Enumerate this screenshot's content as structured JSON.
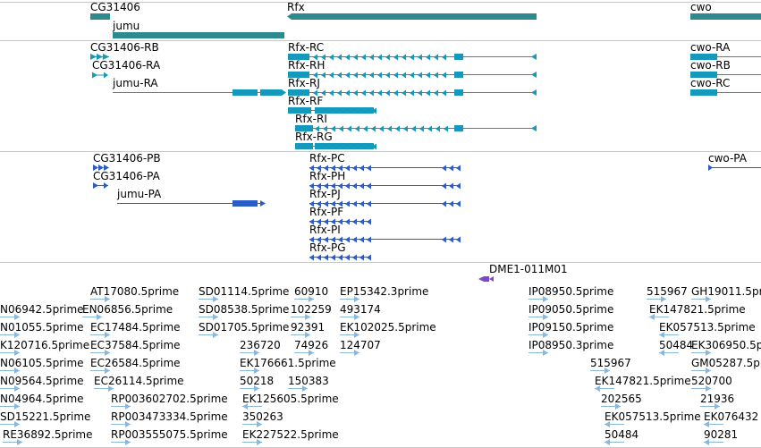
{
  "colors": {
    "gene": "#2d8b8f",
    "transcript": "#1499bc",
    "protein": "#2a5cc6",
    "clone": "#7a4cc4",
    "est": "#8ab8dc",
    "divider": "#c8c8c8"
  },
  "genes": [
    {
      "label": "CG31406"
    },
    {
      "label": "jumu"
    },
    {
      "label": "Rfx"
    },
    {
      "label": "cwo"
    }
  ],
  "transcripts": [
    {
      "label": "CG31406-RB"
    },
    {
      "label": "CG31406-RA"
    },
    {
      "label": "jumu-RA"
    },
    {
      "label": "Rfx-RC"
    },
    {
      "label": "Rfx-RH"
    },
    {
      "label": "Rfx-RJ"
    },
    {
      "label": "Rfx-RF"
    },
    {
      "label": "Rfx-RI"
    },
    {
      "label": "Rfx-RG"
    },
    {
      "label": "cwo-RA"
    },
    {
      "label": "cwo-RB"
    },
    {
      "label": "cwo-RC"
    }
  ],
  "proteins": [
    {
      "label": "CG31406-PB"
    },
    {
      "label": "CG31406-PA"
    },
    {
      "label": "jumu-PA"
    },
    {
      "label": "Rfx-PC"
    },
    {
      "label": "Rfx-PH"
    },
    {
      "label": "Rfx-PJ"
    },
    {
      "label": "Rfx-PF"
    },
    {
      "label": "Rfx-PI"
    },
    {
      "label": "Rfx-PG"
    },
    {
      "label": "cwo-PA"
    }
  ],
  "clones": [
    {
      "label": "DME1-011M01"
    }
  ],
  "ests": [
    {
      "label": "AT17080.5prime"
    },
    {
      "label": "SD01114.5prime"
    },
    {
      "label": "60910"
    },
    {
      "label": "EP15342.3prime"
    },
    {
      "label": "IP08950.5prime"
    },
    {
      "label": "515967"
    },
    {
      "label": "GH19011.5prime"
    },
    {
      "label": "N06942.5prime"
    },
    {
      "label": "EN06856.5prime"
    },
    {
      "label": "SD08538.5prime"
    },
    {
      "label": "102259"
    },
    {
      "label": "493174"
    },
    {
      "label": "IP09050.5prime"
    },
    {
      "label": "EK147821.5prime"
    },
    {
      "label": "N01055.5prime"
    },
    {
      "label": "EC17484.5prime"
    },
    {
      "label": "SD01705.5prime"
    },
    {
      "label": "92391"
    },
    {
      "label": "EK102025.5prime"
    },
    {
      "label": "IP09150.5prime"
    },
    {
      "label": "EK057513.5prime"
    },
    {
      "label": "K120716.5prime"
    },
    {
      "label": "EC37584.5prime"
    },
    {
      "label": "236720"
    },
    {
      "label": "74926"
    },
    {
      "label": "124707"
    },
    {
      "label": "IP08950.3prime"
    },
    {
      "label": "50484"
    },
    {
      "label": "EK306950.5prime"
    },
    {
      "label": "N06105.5prime"
    },
    {
      "label": "EC26584.5prime"
    },
    {
      "label": "EK176661.5prime"
    },
    {
      "label": "515967"
    },
    {
      "label": "GM05287.5prime"
    },
    {
      "label": "N09564.5prime"
    },
    {
      "label": "EC26114.5prime"
    },
    {
      "label": "50218"
    },
    {
      "label": "150383"
    },
    {
      "label": "EK147821.5prime"
    },
    {
      "label": "520700"
    },
    {
      "label": "N04964.5prime"
    },
    {
      "label": "RP003602702.5prime"
    },
    {
      "label": "EK125605.5prime"
    },
    {
      "label": "202565"
    },
    {
      "label": "21936"
    },
    {
      "label": "SD15221.5prime"
    },
    {
      "label": "RP003473334.5prime"
    },
    {
      "label": "350263"
    },
    {
      "label": "EK057513.5prime"
    },
    {
      "label": "EK076432"
    },
    {
      "label": "RE36892.5prime"
    },
    {
      "label": "RP003555075.5prime"
    },
    {
      "label": "EK227522.5prime"
    },
    {
      "label": "50484"
    },
    {
      "label": "90281"
    }
  ]
}
